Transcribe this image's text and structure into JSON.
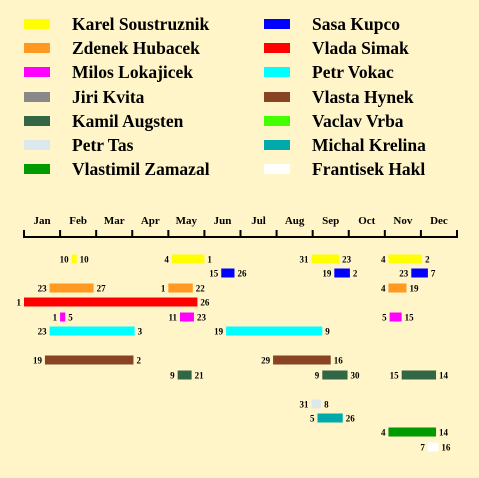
{
  "legend": [
    {
      "name": "Karel Soustruznik",
      "color": "#ffff00"
    },
    {
      "name": "Zdenek Hubacek",
      "color": "#ff9922"
    },
    {
      "name": "Milos Lokajicek",
      "color": "#ff00ff"
    },
    {
      "name": "Jiri Kvita",
      "color": "#888888"
    },
    {
      "name": "Kamil Augsten",
      "color": "#336644"
    },
    {
      "name": "Petr Tas",
      "color": "#dde8ee"
    },
    {
      "name": "Vlastimil Zamazal",
      "color": "#009900"
    },
    {
      "name": "Sasa Kupco",
      "color": "#0000ff"
    },
    {
      "name": "Vlada Simak",
      "color": "#ff0000"
    },
    {
      "name": "Petr Vokac",
      "color": "#00ffff"
    },
    {
      "name": "Vlasta Hynek",
      "color": "#884422"
    },
    {
      "name": "Vaclav Vrba",
      "color": "#44ff00"
    },
    {
      "name": "Michal Krelina",
      "color": "#00aaaa"
    },
    {
      "name": "Frantisek Hakl",
      "color": "#ffffff"
    }
  ],
  "chart_data": {
    "type": "gantt",
    "x_axis": {
      "months": [
        "Jan",
        "Feb",
        "Mar",
        "Apr",
        "May",
        "Jun",
        "Jul",
        "Aug",
        "Sep",
        "Oct",
        "Nov",
        "Dec"
      ]
    },
    "series": [
      {
        "name": "Karel Soustruznik",
        "color": "#ffff00",
        "periods": [
          {
            "start_month": 2,
            "start_day": 10,
            "end_month": 2,
            "end_day": 10,
            "start_label": "10",
            "end_label": "10"
          },
          {
            "start_month": 5,
            "start_day": 4,
            "end_month": 6,
            "end_day": 1,
            "start_label": "4",
            "end_label": "1"
          },
          {
            "start_month": 8,
            "start_day": 31,
            "end_month": 9,
            "end_day": 23,
            "start_label": "31",
            "end_label": "23"
          },
          {
            "start_month": 11,
            "start_day": 4,
            "end_month": 12,
            "end_day": 2,
            "start_label": "4",
            "end_label": "2"
          }
        ]
      },
      {
        "name": "Sasa Kupco",
        "color": "#0000ff",
        "periods": [
          {
            "start_month": 6,
            "start_day": 15,
            "end_month": 6,
            "end_day": 26,
            "start_label": "15",
            "end_label": "26"
          },
          {
            "start_month": 9,
            "start_day": 19,
            "end_month": 10,
            "end_day": 2,
            "start_label": "19",
            "end_label": "2"
          },
          {
            "start_month": 11,
            "start_day": 23,
            "end_month": 12,
            "end_day": 7,
            "start_label": "23",
            "end_label": "7"
          }
        ]
      },
      {
        "name": "Zdenek Hubacek",
        "color": "#ff9922",
        "periods": [
          {
            "start_month": 1,
            "start_day": 23,
            "end_month": 2,
            "end_day": 27,
            "start_label": "23",
            "end_label": "27"
          },
          {
            "start_month": 5,
            "start_day": 1,
            "end_month": 5,
            "end_day": 22,
            "start_label": "1",
            "end_label": "22"
          },
          {
            "start_month": 11,
            "start_day": 4,
            "end_month": 11,
            "end_day": 19,
            "start_label": "4",
            "end_label": "19"
          }
        ]
      },
      {
        "name": "Vlada Simak",
        "color": "#ff0000",
        "periods": [
          {
            "start_month": 1,
            "start_day": 1,
            "end_month": 5,
            "end_day": 26,
            "start_label": "1",
            "end_label": "26"
          }
        ]
      },
      {
        "name": "Milos Lokajicek",
        "color": "#ff00ff",
        "periods": [
          {
            "start_month": 2,
            "start_day": 1,
            "end_month": 2,
            "end_day": 5,
            "start_label": "1",
            "end_label": "5"
          },
          {
            "start_month": 5,
            "start_day": 11,
            "end_month": 5,
            "end_day": 23,
            "start_label": "11",
            "end_label": "23"
          },
          {
            "start_month": 11,
            "start_day": 5,
            "end_month": 11,
            "end_day": 15,
            "start_label": "5",
            "end_label": "15"
          }
        ]
      },
      {
        "name": "Petr Vokac",
        "color": "#00ffff",
        "periods": [
          {
            "start_month": 1,
            "start_day": 23,
            "end_month": 4,
            "end_day": 3,
            "start_label": "23",
            "end_label": "3"
          },
          {
            "start_month": 6,
            "start_day": 19,
            "end_month": 9,
            "end_day": 9,
            "start_label": "19",
            "end_label": "9"
          }
        ]
      },
      {
        "name": "Vlasta Hynek",
        "color": "#884422",
        "periods": [
          {
            "start_month": 1,
            "start_day": 19,
            "end_month": 4,
            "end_day": 2,
            "start_label": "19",
            "end_label": "2"
          },
          {
            "start_month": 7,
            "start_day": 29,
            "end_month": 9,
            "end_day": 16,
            "start_label": "29",
            "end_label": "16"
          }
        ]
      },
      {
        "name": "Kamil Augsten",
        "color": "#336644",
        "periods": [
          {
            "start_month": 5,
            "start_day": 9,
            "end_month": 5,
            "end_day": 21,
            "start_label": "9",
            "end_label": "21"
          },
          {
            "start_month": 9,
            "start_day": 9,
            "end_month": 9,
            "end_day": 30,
            "start_label": "9",
            "end_label": "30"
          },
          {
            "start_month": 11,
            "start_day": 15,
            "end_month": 12,
            "end_day": 14,
            "start_label": "15",
            "end_label": "14"
          }
        ]
      },
      {
        "name": "Petr Tas",
        "color": "#dde8ee",
        "periods": [
          {
            "start_month": 8,
            "start_day": 31,
            "end_month": 9,
            "end_day": 8,
            "start_label": "31",
            "end_label": "8"
          }
        ]
      },
      {
        "name": "Michal Krelina",
        "color": "#00aaaa",
        "periods": [
          {
            "start_month": 9,
            "start_day": 5,
            "end_month": 9,
            "end_day": 26,
            "start_label": "5",
            "end_label": "26"
          }
        ]
      },
      {
        "name": "Vlastimil Zamazal",
        "color": "#009900",
        "periods": [
          {
            "start_month": 11,
            "start_day": 4,
            "end_month": 12,
            "end_day": 14,
            "start_label": "4",
            "end_label": "14"
          }
        ]
      },
      {
        "name": "Frantisek Hakl",
        "color": "#ffffff",
        "periods": [
          {
            "start_month": 12,
            "start_day": 7,
            "end_month": 12,
            "end_day": 16,
            "start_label": "7",
            "end_label": "16"
          }
        ]
      }
    ]
  }
}
